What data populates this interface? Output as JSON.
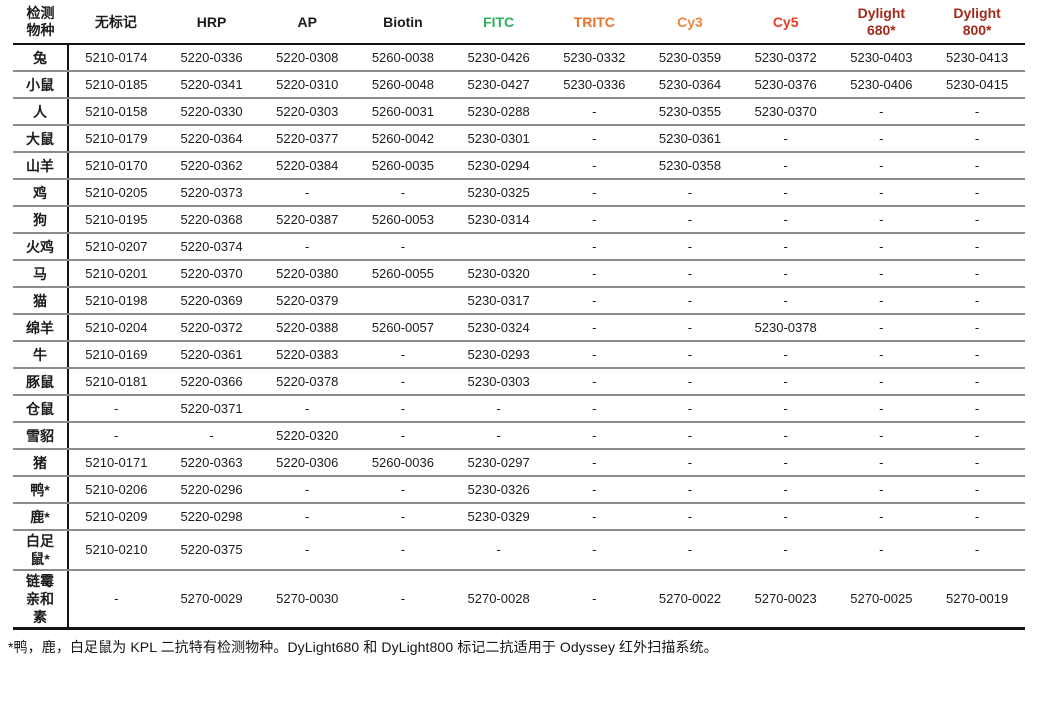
{
  "table": {
    "columns": [
      {
        "id": "species",
        "label": "检测\n物种",
        "color": "#1c1c1c"
      },
      {
        "id": "unlabeled",
        "label": "无标记",
        "color": "#1c1c1c"
      },
      {
        "id": "hrp",
        "label": "HRP",
        "color": "#1c1c1c"
      },
      {
        "id": "ap",
        "label": "AP",
        "color": "#1c1c1c"
      },
      {
        "id": "biotin",
        "label": "Biotin",
        "color": "#1c1c1c"
      },
      {
        "id": "fitc",
        "label": "FITC",
        "color": "#2bb159"
      },
      {
        "id": "tritc",
        "label": "TRITC",
        "color": "#ed7225"
      },
      {
        "id": "cy3",
        "label": "Cy3",
        "color": "#f0863b"
      },
      {
        "id": "cy5",
        "label": "Cy5",
        "color": "#e63e26"
      },
      {
        "id": "dylight680",
        "label": "Dylight\n680*",
        "color": "#a22a1d"
      },
      {
        "id": "dylight800",
        "label": "Dylight\n800*",
        "color": "#a22a1d"
      }
    ],
    "rows": [
      {
        "species": "兔",
        "values": [
          "5210-0174",
          "5220-0336",
          "5220-0308",
          "5260-0038",
          "5230-0426",
          "5230-0332",
          "5230-0359",
          "5230-0372",
          "5230-0403",
          "5230-0413"
        ]
      },
      {
        "species": "小鼠",
        "values": [
          "5210-0185",
          "5220-0341",
          "5220-0310",
          "5260-0048",
          "5230-0427",
          "5230-0336",
          "5230-0364",
          "5230-0376",
          "5230-0406",
          "5230-0415"
        ]
      },
      {
        "species": "人",
        "values": [
          "5210-0158",
          "5220-0330",
          "5220-0303",
          "5260-0031",
          "5230-0288",
          "-",
          "5230-0355",
          "5230-0370",
          "-",
          "-"
        ]
      },
      {
        "species": "大鼠",
        "values": [
          "5210-0179",
          "5220-0364",
          "5220-0377",
          "5260-0042",
          "5230-0301",
          "-",
          "5230-0361",
          "-",
          "-",
          "-"
        ]
      },
      {
        "species": "山羊",
        "values": [
          "5210-0170",
          "5220-0362",
          "5220-0384",
          "5260-0035",
          "5230-0294",
          "-",
          "5230-0358",
          "-",
          "-",
          "-"
        ]
      },
      {
        "species": "鸡",
        "values": [
          "5210-0205",
          "5220-0373",
          "-",
          "-",
          "5230-0325",
          "-",
          "-",
          "-",
          "-",
          "-"
        ]
      },
      {
        "species": "狗",
        "values": [
          "5210-0195",
          "5220-0368",
          "5220-0387",
          "5260-0053",
          "5230-0314",
          "-",
          "-",
          "-",
          "-",
          "-"
        ]
      },
      {
        "species": "火鸡",
        "values": [
          "5210-0207",
          "5220-0374",
          "-",
          "-",
          "",
          "-",
          "-",
          "-",
          "-",
          "-"
        ]
      },
      {
        "species": "马",
        "values": [
          "5210-0201",
          "5220-0370",
          "5220-0380",
          "5260-0055",
          "5230-0320",
          "-",
          "-",
          "-",
          "-",
          "-"
        ]
      },
      {
        "species": "猫",
        "values": [
          "5210-0198",
          "5220-0369",
          "5220-0379",
          "",
          "5230-0317",
          "-",
          "-",
          "-",
          "-",
          "-"
        ]
      },
      {
        "species": "绵羊",
        "values": [
          "5210-0204",
          "5220-0372",
          "5220-0388",
          "5260-0057",
          "5230-0324",
          "-",
          "-",
          "5230-0378",
          "-",
          "-"
        ]
      },
      {
        "species": "牛",
        "values": [
          "5210-0169",
          "5220-0361",
          "5220-0383",
          "-",
          "5230-0293",
          "-",
          "-",
          "-",
          "-",
          "-"
        ]
      },
      {
        "species": "豚鼠",
        "values": [
          "5210-0181",
          "5220-0366",
          "5220-0378",
          "-",
          "5230-0303",
          "-",
          "-",
          "-",
          "-",
          "-"
        ]
      },
      {
        "species": "仓鼠",
        "values": [
          "-",
          "5220-0371",
          "-",
          "-",
          "-",
          "-",
          "-",
          "-",
          "-",
          "-"
        ]
      },
      {
        "species": "雪貂",
        "values": [
          "-",
          "-",
          "5220-0320",
          "-",
          "-",
          "-",
          "-",
          "-",
          "-",
          "-"
        ]
      },
      {
        "species": "猪",
        "values": [
          "5210-0171",
          "5220-0363",
          "5220-0306",
          "5260-0036",
          "5230-0297",
          "-",
          "-",
          "-",
          "-",
          "-"
        ]
      },
      {
        "species": "鸭*",
        "values": [
          "5210-0206",
          "5220-0296",
          "-",
          "-",
          "5230-0326",
          "-",
          "-",
          "-",
          "-",
          "-"
        ]
      },
      {
        "species": "鹿*",
        "values": [
          "5210-0209",
          "5220-0298",
          "-",
          "-",
          "5230-0329",
          "-",
          "-",
          "-",
          "-",
          "-"
        ]
      },
      {
        "species": "白足\n鼠*",
        "values": [
          "5210-0210",
          "5220-0375",
          "-",
          "-",
          "-",
          "-",
          "-",
          "-",
          "-",
          "-"
        ]
      },
      {
        "species": "链霉\n亲和\n素",
        "values": [
          "-",
          "5270-0029",
          "5270-0030",
          "-",
          "5270-0028",
          "-",
          "5270-0022",
          "5270-0023",
          "5270-0025",
          "5270-0019"
        ]
      }
    ]
  },
  "footnote": "*鸭，鹿，白足鼠为 KPL 二抗特有检测物种。DyLight680 和 DyLight800 标记二抗适用于 Odyssey 红外扫描系统。"
}
